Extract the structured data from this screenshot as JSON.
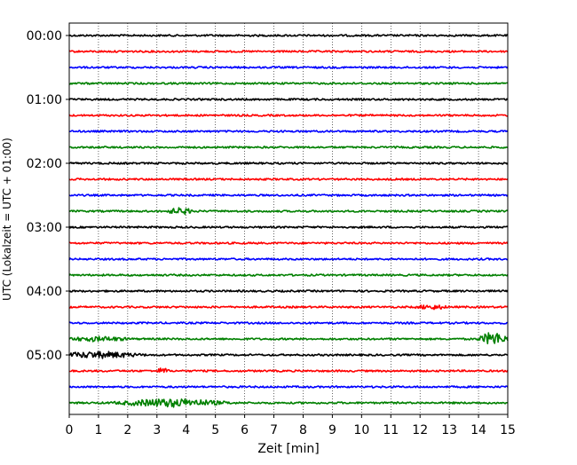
{
  "chart_data": {
    "type": "line",
    "title": "",
    "xlabel": "Zeit  [min]",
    "ylabel": "UTC (Lokalzeit = UTC + 01:00)",
    "xlim": [
      0,
      15
    ],
    "x_ticks": [
      "0",
      "1",
      "2",
      "3",
      "4",
      "5",
      "6",
      "7",
      "8",
      "9",
      "10",
      "11",
      "12",
      "13",
      "14",
      "15"
    ],
    "y_tick_labels": [
      "00:00",
      "01:00",
      "02:00",
      "03:00",
      "04:00",
      "05:00"
    ],
    "vertical_grid": true,
    "horizontal_grid": false,
    "trace_colors": [
      "#000000",
      "#ff0000",
      "#0000ff",
      "#008000"
    ],
    "trace_count": 24,
    "trace_start_times": [
      "00:00",
      "00:15",
      "00:30",
      "00:45",
      "01:00",
      "01:15",
      "01:30",
      "01:45",
      "02:00",
      "02:15",
      "02:30",
      "02:45",
      "03:00",
      "03:15",
      "03:30",
      "03:45",
      "04:00",
      "04:15",
      "04:30",
      "04:45",
      "05:00",
      "05:15",
      "05:30",
      "05:45"
    ],
    "events": [
      {
        "trace": 11,
        "x": 3.8,
        "amplitude": 4,
        "width": 0.5
      },
      {
        "trace": 17,
        "x": 12.4,
        "amplitude": 3,
        "width": 0.6
      },
      {
        "trace": 19,
        "x": 14.5,
        "amplitude": 8,
        "width": 0.45
      },
      {
        "trace": 19,
        "x": 1.0,
        "amplitude": 3,
        "width": 1.2
      },
      {
        "trace": 20,
        "x": 1.0,
        "amplitude": 4,
        "width": 1.5
      },
      {
        "trace": 21,
        "x": 3.2,
        "amplitude": 4,
        "width": 0.2
      },
      {
        "trace": 23,
        "x": 3.5,
        "amplitude": 5,
        "width": 1.8
      }
    ]
  }
}
